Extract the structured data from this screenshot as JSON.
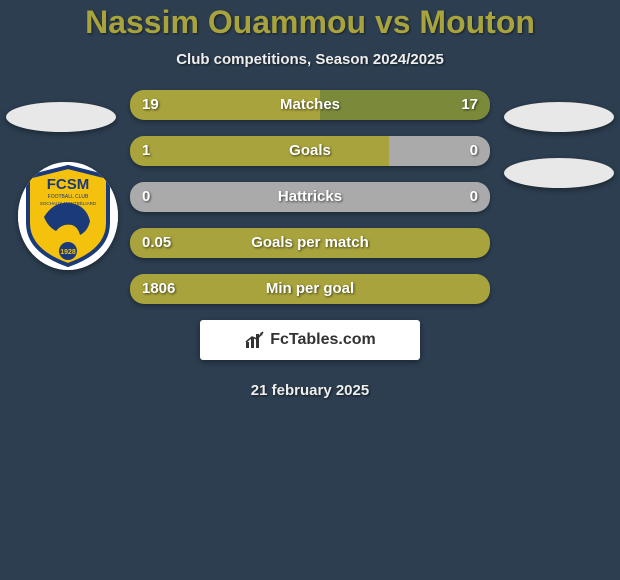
{
  "header": {
    "title": "Nassim Ouammou vs Mouton",
    "title_color": "#a8a33c",
    "subtitle": "Club competitions, Season 2024/2025"
  },
  "bar_style": {
    "left_color": "#a8a33c",
    "right_color": "#7b8a3a",
    "empty_color": "#aaaaaa",
    "full_color": "#a8a33c",
    "text_color": "#ffffff"
  },
  "ovals": {
    "bg_color": "#e8e8e8"
  },
  "stats": [
    {
      "label": "Matches",
      "left_val": "19",
      "right_val": "17",
      "left_pct": 52.8,
      "right_pct": 47.2,
      "left_color": "#a8a33c",
      "right_color": "#7b8a3a"
    },
    {
      "label": "Goals",
      "left_val": "1",
      "right_val": "0",
      "left_pct": 72.0,
      "right_pct": 28.0,
      "left_color": "#a8a33c",
      "right_color": "#aaaaaa"
    },
    {
      "label": "Hattricks",
      "left_val": "0",
      "right_val": "0",
      "left_pct": 50.0,
      "right_pct": 50.0,
      "left_color": "#aaaaaa",
      "right_color": "#aaaaaa"
    },
    {
      "label": "Goals per match",
      "left_val": "0.05",
      "right_val": "",
      "left_pct": 100,
      "right_pct": 0,
      "left_color": "#a8a33c",
      "right_color": "#a8a33c"
    },
    {
      "label": "Min per goal",
      "left_val": "1806",
      "right_val": "",
      "left_pct": 100,
      "right_pct": 0,
      "left_color": "#a8a33c",
      "right_color": "#a8a33c"
    }
  ],
  "left_badge": {
    "name": "FCSM",
    "sub": "FOOTBALL CLUB",
    "sub2": "SOCHAUX-MONTBÉLIARD",
    "year": "1928",
    "bg_color": "#f4c20d",
    "ring_color": "#1a3a7a",
    "text_color": "#1a3a7a"
  },
  "footer": {
    "brand": "FcTables.com",
    "date": "21 february 2025"
  },
  "bg_color": "#2c3e50"
}
